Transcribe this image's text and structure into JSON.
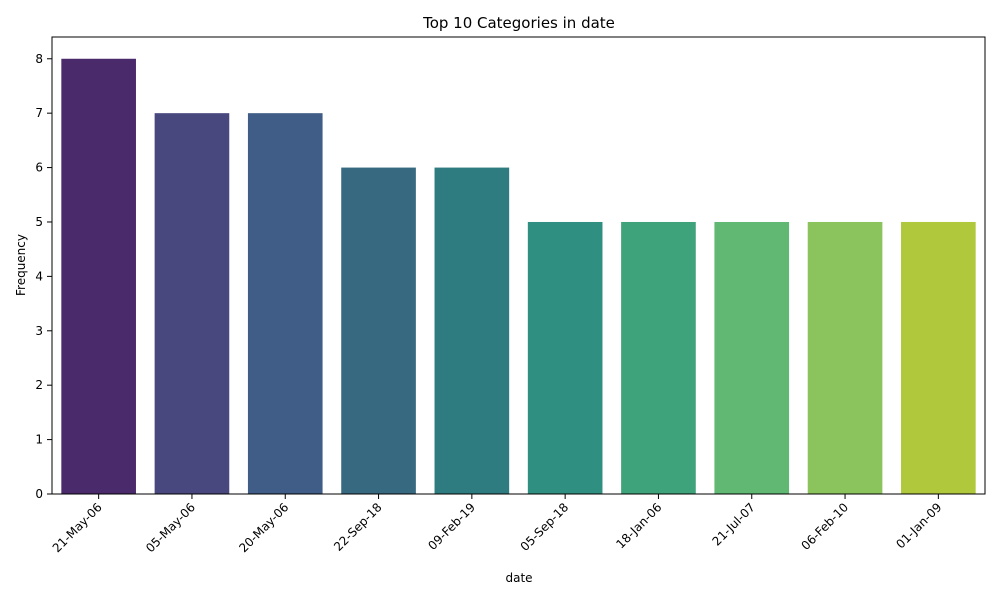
{
  "chart_data": {
    "type": "bar",
    "title": "Top 10 Categories in date",
    "xlabel": "date",
    "ylabel": "Frequency",
    "categories": [
      "21-May-06",
      "05-May-06",
      "20-May-06",
      "22-Sep-18",
      "09-Feb-19",
      "05-Sep-18",
      "18-Jan-06",
      "21-Jul-07",
      "06-Feb-10",
      "01-Jan-09"
    ],
    "values": [
      8,
      7,
      7,
      6,
      6,
      5,
      5,
      5,
      5,
      5
    ],
    "colors": [
      "#4a2a6b",
      "#48487f",
      "#405d87",
      "#376a80",
      "#2f7c80",
      "#2f8f80",
      "#3ea37a",
      "#60b872",
      "#8bc45c",
      "#b0c83c"
    ],
    "ylim": [
      0,
      8.4
    ],
    "yticks": [
      0,
      1,
      2,
      3,
      4,
      5,
      6,
      7,
      8
    ],
    "grid": false,
    "legend": "none"
  }
}
